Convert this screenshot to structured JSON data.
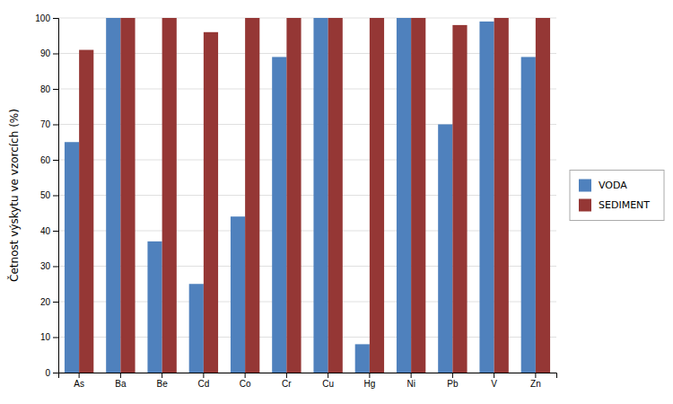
{
  "chart_data": {
    "type": "bar",
    "categories": [
      "As",
      "Ba",
      "Be",
      "Cd",
      "Co",
      "Cr",
      "Cu",
      "Hg",
      "Ni",
      "Pb",
      "V",
      "Zn"
    ],
    "series": [
      {
        "name": "VODA",
        "color": "#4F81BD",
        "values": [
          65,
          100,
          37,
          25,
          44,
          89,
          100,
          8,
          100,
          70,
          99,
          89
        ]
      },
      {
        "name": "SEDIMENT",
        "color": "#953735",
        "values": [
          91,
          100,
          100,
          96,
          100,
          100,
          100,
          100,
          100,
          98,
          100,
          100
        ]
      }
    ],
    "y_label": "Četnost výskytu ve vzorcích (%)",
    "ylim": [
      0,
      100
    ],
    "yticks": [
      0,
      10,
      20,
      30,
      40,
      50,
      60,
      70,
      80,
      90,
      100
    ],
    "grid": true,
    "legend": "right"
  }
}
